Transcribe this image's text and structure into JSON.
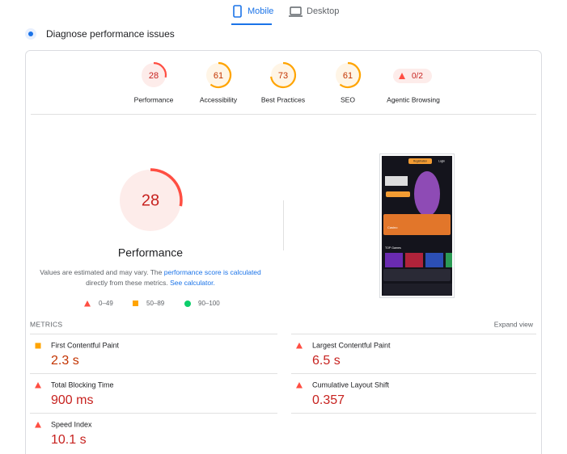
{
  "tabs": [
    {
      "label": "Mobile"
    },
    {
      "label": "Desktop"
    }
  ],
  "heading": "Diagnose performance issues",
  "scores": [
    {
      "label": "Performance",
      "score": 28,
      "color": "#ff4e42",
      "fill": "#fdecea",
      "text_color": "#c7221f"
    },
    {
      "label": "Accessibility",
      "score": 61,
      "color": "#ffa400",
      "fill": "#fff5e6",
      "text_color": "#c33300"
    },
    {
      "label": "Best Practices",
      "score": 73,
      "color": "#ffa400",
      "fill": "#fff5e6",
      "text_color": "#c33300"
    },
    {
      "label": "SEO",
      "score": 61,
      "color": "#ffa400",
      "fill": "#fff5e6",
      "text_color": "#c33300"
    }
  ],
  "agentic": {
    "label": "Agentic Browsing",
    "value": "0/2"
  },
  "main": {
    "score": 28,
    "label": "Performance",
    "color": "#ff4e42",
    "fill": "#fdecea",
    "text_color": "#c7221f"
  },
  "note": {
    "part1": "Values are estimated and may vary. The ",
    "link1": "performance score is calculated",
    "part2": "directly from these metrics. ",
    "link2": "See calculator."
  },
  "legend": [
    "0–49",
    "50–89",
    "90–100"
  ],
  "screenshot": {
    "register": "Registration",
    "login": "Login",
    "casino": "Casino",
    "games": "TOP Games"
  },
  "metrics_title": "METRICS",
  "expand": "Expand view",
  "metrics": [
    {
      "label": "First Contentful Paint",
      "value": "2.3 s",
      "icon": "square",
      "color": "#ffa400",
      "text_color": "#c33300"
    },
    {
      "label": "Largest Contentful Paint",
      "value": "6.5 s",
      "icon": "triangle",
      "color": "#ff4e42",
      "text_color": "#c7221f"
    },
    {
      "label": "Total Blocking Time",
      "value": "900 ms",
      "icon": "triangle",
      "color": "#ff4e42",
      "text_color": "#c7221f"
    },
    {
      "label": "Cumulative Layout Shift",
      "value": "0.357",
      "icon": "triangle",
      "color": "#ff4e42",
      "text_color": "#c7221f"
    },
    {
      "label": "Speed Index",
      "value": "10.1 s",
      "icon": "triangle",
      "color": "#ff4e42",
      "text_color": "#c7221f"
    }
  ]
}
